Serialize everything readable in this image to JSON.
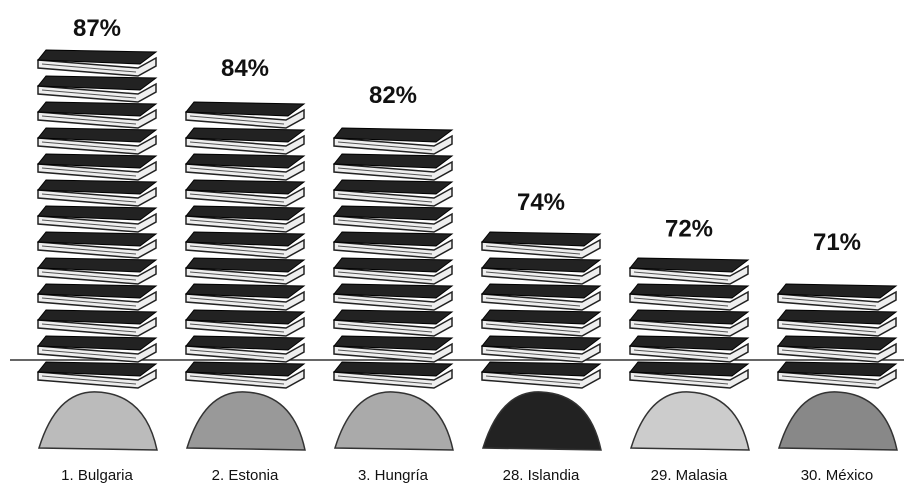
{
  "chart_data": {
    "type": "bar",
    "categories": [
      "1. Bulgaria",
      "2. Estonia",
      "3. Hungría",
      "28. Islandia",
      "29. Malasia",
      "30. México"
    ],
    "values": [
      87,
      84,
      82,
      74,
      72,
      71
    ],
    "value_labels": [
      "87%",
      "84%",
      "82%",
      "74%",
      "72%",
      "71%"
    ],
    "color": "#222222"
  }
}
